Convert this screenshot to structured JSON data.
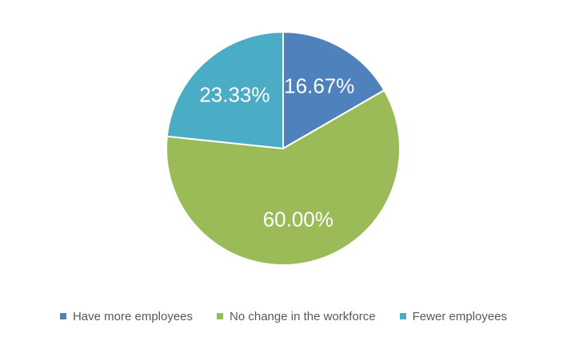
{
  "chart_data": {
    "type": "pie",
    "categories": [
      "Have more employees",
      "No change in the workforce",
      "Fewer employees"
    ],
    "values": [
      16.67,
      60.0,
      23.33
    ],
    "labels": [
      "16.67%",
      "60.00%",
      "23.33%"
    ],
    "colors": [
      "#4f81bd",
      "#9bbb59",
      "#4bacc6"
    ],
    "title": "",
    "legend_position": "bottom",
    "start_angle": "12 o'clock",
    "direction": "clockwise"
  },
  "legend": {
    "items": [
      {
        "label": "Have more employees",
        "color": "#4f81bd"
      },
      {
        "label": "No change in the workforce",
        "color": "#9bbb59"
      },
      {
        "label": "Fewer employees",
        "color": "#4bacc6"
      }
    ]
  }
}
